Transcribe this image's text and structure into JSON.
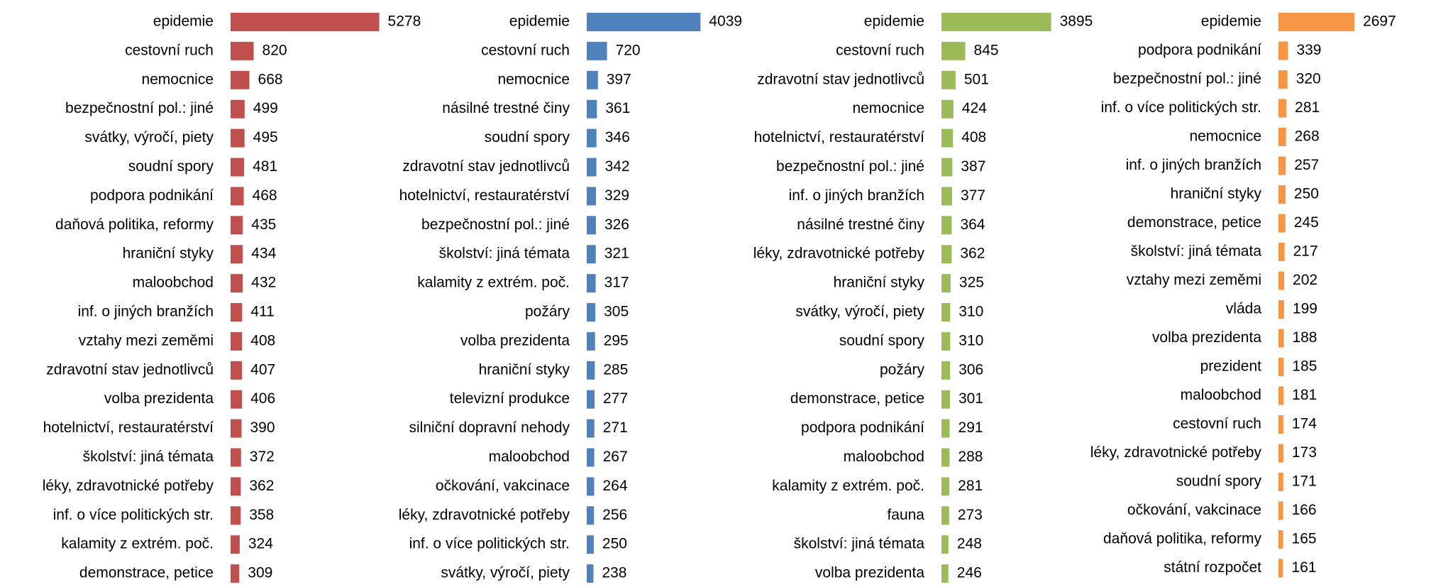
{
  "chart_data": [
    {
      "type": "bar",
      "color": "#c0504d",
      "categories": [
        "epidemie",
        "cestovní ruch",
        "nemocnice",
        "bezpečnostní pol.: jiné",
        "svátky, výročí, piety",
        "soudní spory",
        "podpora podnikání",
        "daňová politika, reformy",
        "hraniční styky",
        "maloobchod",
        "inf. o jiných branžích",
        "vztahy mezi zeměmi",
        "zdravotní stav jednotlivců",
        "volba prezidenta",
        "hotelnictví, restauratérství",
        "školství: jiná témata",
        "léky, zdravotnické potřeby",
        "inf. o více politických str.",
        "kalamity z extrém. poč.",
        "demonstrace, petice"
      ],
      "values": [
        5278,
        820,
        668,
        499,
        495,
        481,
        468,
        435,
        434,
        432,
        411,
        408,
        407,
        406,
        390,
        372,
        362,
        358,
        324,
        309
      ]
    },
    {
      "type": "bar",
      "color": "#4f81bd",
      "categories": [
        "epidemie",
        "cestovní ruch",
        "nemocnice",
        "násilné trestné činy",
        "soudní spory",
        "zdravotní stav jednotlivců",
        "hotelnictví, restauratérství",
        "bezpečnostní pol.: jiné",
        "školství: jiná témata",
        "kalamity z extrém. poč.",
        "požáry",
        "volba prezidenta",
        "hraniční styky",
        "televizní produkce",
        "silniční dopravní nehody",
        "maloobchod",
        "očkování, vakcinace",
        "léky, zdravotnické potřeby",
        "inf. o více politických str.",
        "svátky, výročí, piety"
      ],
      "values": [
        4039,
        720,
        397,
        361,
        346,
        342,
        329,
        326,
        321,
        317,
        305,
        295,
        285,
        277,
        271,
        267,
        264,
        256,
        250,
        238
      ]
    },
    {
      "type": "bar",
      "color": "#9bbb59",
      "categories": [
        "epidemie",
        "cestovní ruch",
        "zdravotní stav jednotlivců",
        "nemocnice",
        "hotelnictví, restauratérství",
        "bezpečnostní pol.: jiné",
        "inf. o jiných branžích",
        "násilné trestné činy",
        "léky, zdravotnické potřeby",
        "hraniční styky",
        "svátky, výročí, piety",
        "soudní spory",
        "požáry",
        "demonstrace, petice",
        "podpora podnikání",
        "maloobchod",
        "kalamity z extrém. poč.",
        "fauna",
        "školství: jiná témata",
        "volba prezidenta"
      ],
      "values": [
        3895,
        845,
        501,
        424,
        408,
        387,
        377,
        364,
        362,
        325,
        310,
        310,
        306,
        301,
        291,
        288,
        281,
        273,
        248,
        246
      ]
    },
    {
      "type": "bar",
      "color": "#f79646",
      "categories": [
        "epidemie",
        "podpora podnikání",
        "bezpečnostní pol.: jiné",
        "inf. o více politických str.",
        "nemocnice",
        "inf. o jiných branžích",
        "hraniční styky",
        "demonstrace, petice",
        "školství: jiná témata",
        "vztahy mezi zeměmi",
        "vláda",
        "volba prezidenta",
        "prezident",
        "maloobchod",
        "cestovní ruch",
        "léky, zdravotnické potřeby",
        "soudní spory",
        "očkování, vakcinace",
        "daňová politika, reformy",
        "státní rozpočet"
      ],
      "values": [
        2697,
        339,
        320,
        281,
        268,
        257,
        250,
        245,
        217,
        202,
        199,
        188,
        185,
        181,
        174,
        173,
        171,
        166,
        165,
        161
      ]
    }
  ]
}
